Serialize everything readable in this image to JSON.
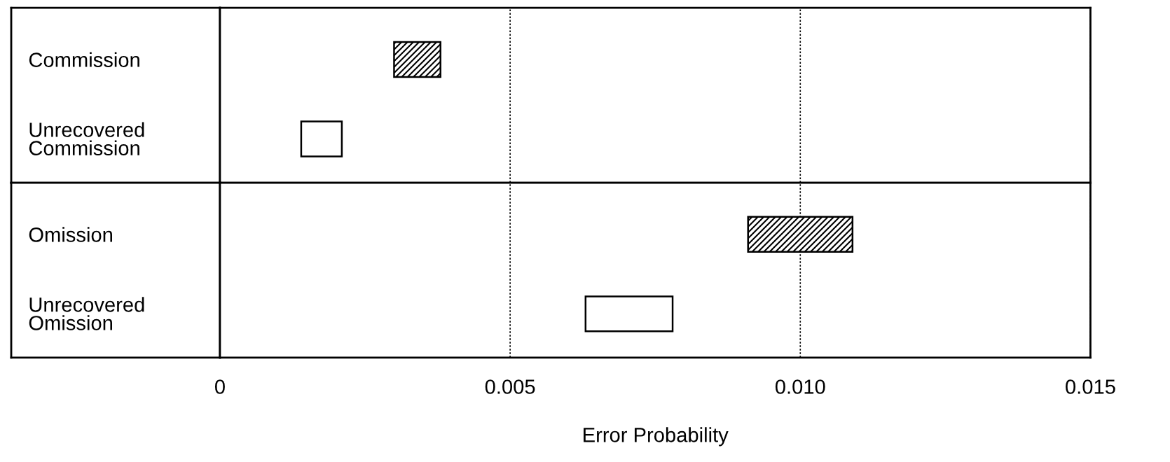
{
  "chart_data": [
    {
      "type": "bar",
      "orientation": "horizontal",
      "categories": [
        "Commission",
        "Unrecovered\nCommission"
      ],
      "base": [
        0.003,
        0.0014
      ],
      "values": [
        0.0008,
        0.0007
      ],
      "colors": [
        "#000000",
        "#ffffff"
      ],
      "xlim": [
        0,
        0.015
      ],
      "xticks": [
        0,
        0.005,
        0.01,
        0.015
      ],
      "grid": "x",
      "tick_labels": "y"
    },
    {
      "type": "bar",
      "orientation": "horizontal",
      "categories": [
        "Omission",
        "Unrecovered\nOmission"
      ],
      "base": [
        0.0091,
        0.0063
      ],
      "values": [
        0.0018,
        0.0015
      ],
      "colors": [
        "#000000",
        "#ffffff"
      ],
      "xlim": [
        0,
        0.015
      ],
      "xticks": [
        0,
        0.005,
        {
          "value": 0.01,
          "label": "0.010"
        },
        0.015
      ],
      "grid": "x",
      "xlabel": "Error Probability"
    }
  ]
}
